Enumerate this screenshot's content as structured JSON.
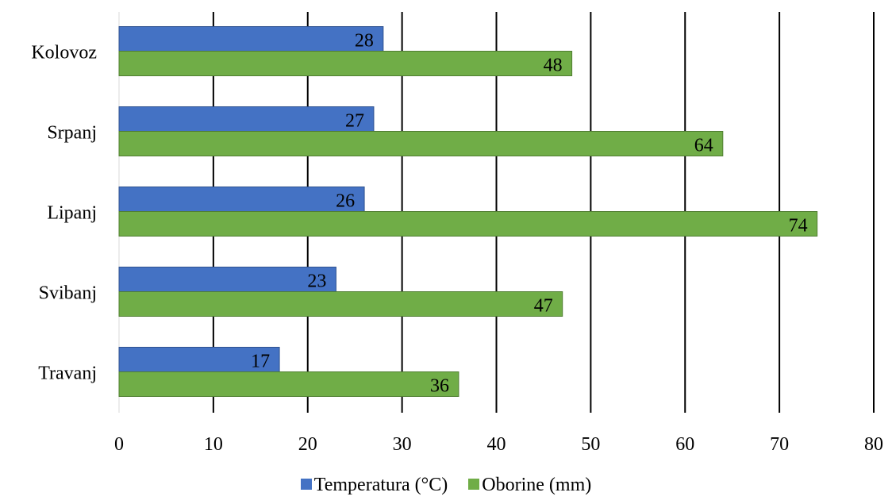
{
  "chart_data": {
    "type": "bar",
    "orientation": "horizontal",
    "categories": [
      "Travanj",
      "Svibanj",
      "Lipanj",
      "Srpanj",
      "Kolovoz"
    ],
    "series": [
      {
        "name": "Temperatura (°C)",
        "values": [
          17,
          23,
          26,
          27,
          28
        ],
        "color": "#4472c4"
      },
      {
        "name": "Oborine (mm)",
        "values": [
          36,
          47,
          74,
          64,
          48
        ],
        "color": "#70ad47"
      }
    ],
    "xlim": [
      0,
      80
    ],
    "xticks": [
      0,
      10,
      20,
      30,
      40,
      50,
      60,
      70,
      80
    ],
    "grid": true,
    "legend_position": "bottom",
    "data_labels": true
  }
}
